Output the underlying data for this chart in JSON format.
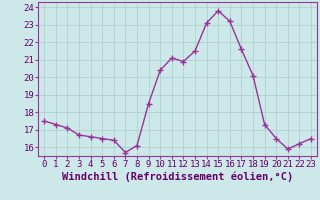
{
  "x": [
    0,
    1,
    2,
    3,
    4,
    5,
    6,
    7,
    8,
    9,
    10,
    11,
    12,
    13,
    14,
    15,
    16,
    17,
    18,
    19,
    20,
    21,
    22,
    23
  ],
  "y": [
    17.5,
    17.3,
    17.1,
    16.7,
    16.6,
    16.5,
    16.4,
    15.7,
    16.1,
    18.5,
    20.4,
    21.1,
    20.9,
    21.5,
    23.1,
    23.8,
    23.2,
    21.6,
    20.1,
    17.3,
    16.5,
    15.9,
    16.2,
    16.5
  ],
  "line_color": "#993399",
  "marker": "+",
  "marker_size": 4,
  "bg_color": "#cce8e8",
  "grid_color": "#aacccc",
  "xlabel": "Windchill (Refroidissement éolien,°C)",
  "xlim": [
    -0.5,
    23.5
  ],
  "ylim": [
    15.5,
    24.3
  ],
  "yticks": [
    16,
    17,
    18,
    19,
    20,
    21,
    22,
    23,
    24
  ],
  "xticks": [
    0,
    1,
    2,
    3,
    4,
    5,
    6,
    7,
    8,
    9,
    10,
    11,
    12,
    13,
    14,
    15,
    16,
    17,
    18,
    19,
    20,
    21,
    22,
    23
  ],
  "tick_label_color": "#660066",
  "tick_label_size": 6.5,
  "xlabel_size": 7.5,
  "xlabel_color": "#660066",
  "spine_color": "#993399",
  "line_width": 1.0
}
